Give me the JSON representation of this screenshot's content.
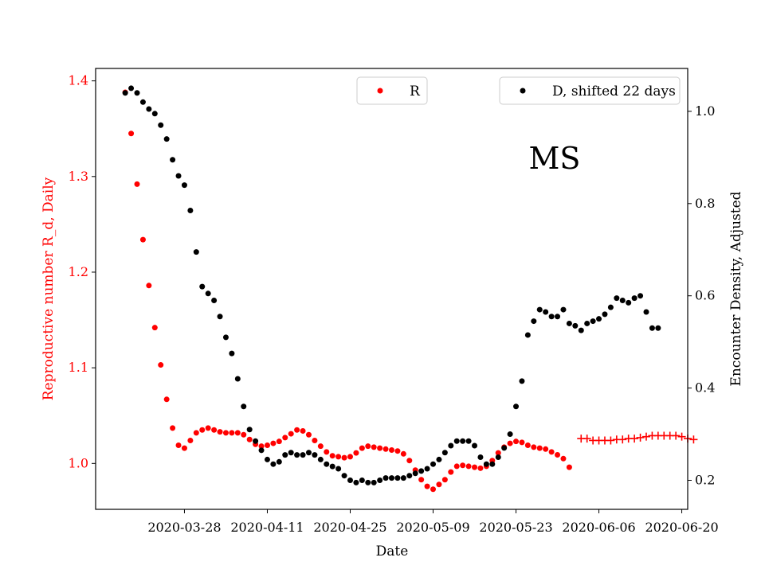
{
  "chart_data": {
    "type": "scatter",
    "annotation": "MS",
    "xlabel": "Date",
    "ylabel_left": "Reproductive number R_d, Daily",
    "ylabel_right": "Encounter Density, Adjusted",
    "x_ticks": [
      "2020-03-28",
      "2020-04-11",
      "2020-04-25",
      "2020-05-09",
      "2020-05-23",
      "2020-06-06",
      "2020-06-20"
    ],
    "x_range": [
      "2020-03-13",
      "2020-06-21"
    ],
    "y_left_ticks": [
      "1.0",
      "1.1",
      "1.2",
      "1.3",
      "1.4"
    ],
    "y_left_range": [
      0.952,
      1.413
    ],
    "y_right_ticks": [
      "0.2",
      "0.4",
      "0.6",
      "0.8",
      "1.0"
    ],
    "y_right_range": [
      0.137,
      1.093
    ],
    "legend": {
      "R": {
        "label": "R",
        "placement": "top-center"
      },
      "D": {
        "label": "D, shifted 22 days",
        "placement": "top-right"
      }
    },
    "colors": {
      "R": "#ff0000",
      "D": "#000000",
      "R_projection": "#ff0000"
    },
    "series": [
      {
        "name": "R",
        "marker": "dot",
        "start_date": "2020-03-18",
        "values": [
          1.388,
          1.345,
          1.292,
          1.234,
          1.186,
          1.142,
          1.103,
          1.067,
          1.037,
          1.019,
          1.016,
          1.024,
          1.032,
          1.035,
          1.037,
          1.035,
          1.033,
          1.032,
          1.032,
          1.032,
          1.03,
          1.025,
          1.02,
          1.018,
          1.019,
          1.021,
          1.023,
          1.027,
          1.031,
          1.035,
          1.034,
          1.03,
          1.024,
          1.018,
          1.012,
          1.008,
          1.007,
          1.006,
          1.007,
          1.011,
          1.016,
          1.018,
          1.017,
          1.016,
          1.015,
          1.014,
          1.013,
          1.01,
          1.003,
          0.993,
          0.983,
          0.976,
          0.973,
          0.978,
          0.983,
          0.991,
          0.997,
          0.998,
          0.997,
          0.996,
          0.995,
          0.997,
          1.003,
          1.011,
          1.017,
          1.021,
          1.023,
          1.022,
          1.019,
          1.017,
          1.016,
          1.015,
          1.012,
          1.009,
          1.005,
          0.996
        ]
      },
      {
        "name": "R_projection",
        "marker": "plus",
        "start_date": "2020-06-03",
        "values": [
          1.026,
          1.026,
          1.024,
          1.024,
          1.024,
          1.024,
          1.025,
          1.025,
          1.026,
          1.026,
          1.027,
          1.028,
          1.029,
          1.029,
          1.029,
          1.029,
          1.029,
          1.028,
          1.026,
          1.025
        ]
      },
      {
        "name": "D, shifted 22 days",
        "marker": "dot",
        "start_date": "2020-03-18",
        "values": [
          1.04,
          1.05,
          1.04,
          1.02,
          1.005,
          0.995,
          0.97,
          0.94,
          0.895,
          0.86,
          0.84,
          0.785,
          0.695,
          0.62,
          0.605,
          0.59,
          0.555,
          0.51,
          0.475,
          0.42,
          0.36,
          0.31,
          0.285,
          0.265,
          0.245,
          0.235,
          0.24,
          0.255,
          0.26,
          0.255,
          0.255,
          0.26,
          0.255,
          0.245,
          0.235,
          0.23,
          0.225,
          0.21,
          0.2,
          0.195,
          0.2,
          0.195,
          0.195,
          0.2,
          0.205,
          0.205,
          0.205,
          0.205,
          0.21,
          0.215,
          0.22,
          0.225,
          0.235,
          0.245,
          0.26,
          0.275,
          0.285,
          0.285,
          0.285,
          0.275,
          0.25,
          0.235,
          0.235,
          0.25,
          0.27,
          0.3,
          0.36,
          0.415,
          0.515,
          0.545,
          0.57,
          0.565,
          0.555,
          0.555,
          0.57,
          0.54,
          0.535,
          0.525,
          0.54,
          0.545,
          0.55,
          0.56,
          0.575,
          0.595,
          0.59,
          0.585,
          0.595,
          0.6,
          0.565,
          0.53,
          0.53
        ]
      }
    ]
  }
}
